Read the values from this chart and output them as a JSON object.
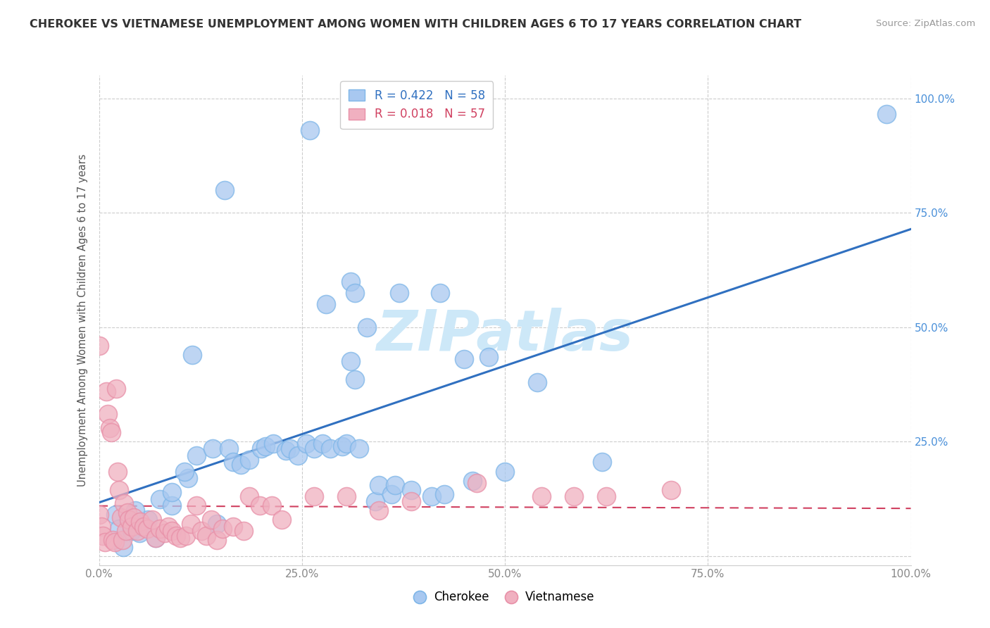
{
  "title": "CHEROKEE VS VIETNAMESE UNEMPLOYMENT AMONG WOMEN WITH CHILDREN AGES 6 TO 17 YEARS CORRELATION CHART",
  "source": "Source: ZipAtlas.com",
  "ylabel": "Unemployment Among Women with Children Ages 6 to 17 years",
  "xlim": [
    0,
    1.0
  ],
  "ylim": [
    -0.02,
    1.05
  ],
  "xticks": [
    0.0,
    0.25,
    0.5,
    0.75,
    1.0
  ],
  "yticks": [
    0.0,
    0.25,
    0.5,
    0.75,
    1.0
  ],
  "xticklabels": [
    "0.0%",
    "25.0%",
    "50.0%",
    "75.0%",
    "100.0%"
  ],
  "right_yticklabels": [
    "",
    "25.0%",
    "50.0%",
    "75.0%",
    "100.0%"
  ],
  "cherokee_color": "#a8c8f0",
  "vietnamese_color": "#f0b0c0",
  "cherokee_edge_color": "#7eb6e8",
  "vietnamese_edge_color": "#e890a8",
  "cherokee_line_color": "#3070c0",
  "vietnamese_line_color": "#d04060",
  "cherokee_R": 0.422,
  "cherokee_N": 58,
  "vietnamese_R": 0.018,
  "vietnamese_N": 57,
  "watermark": "ZIPatlas",
  "watermark_color": "#cde8f8",
  "cherokee_x": [
    0.26,
    0.97,
    0.155,
    0.31,
    0.315,
    0.37,
    0.28,
    0.33,
    0.115,
    0.31,
    0.42,
    0.315,
    0.48,
    0.54,
    0.45,
    0.02,
    0.025,
    0.04,
    0.05,
    0.06,
    0.045,
    0.075,
    0.03,
    0.07,
    0.09,
    0.09,
    0.11,
    0.105,
    0.12,
    0.14,
    0.145,
    0.16,
    0.165,
    0.175,
    0.185,
    0.2,
    0.205,
    0.215,
    0.23,
    0.235,
    0.245,
    0.255,
    0.265,
    0.275,
    0.285,
    0.3,
    0.305,
    0.32,
    0.34,
    0.345,
    0.36,
    0.365,
    0.385,
    0.41,
    0.425,
    0.46,
    0.5,
    0.62
  ],
  "cherokee_y": [
    0.93,
    0.965,
    0.8,
    0.6,
    0.575,
    0.575,
    0.55,
    0.5,
    0.44,
    0.425,
    0.575,
    0.385,
    0.435,
    0.38,
    0.43,
    0.09,
    0.06,
    0.055,
    0.05,
    0.08,
    0.1,
    0.125,
    0.02,
    0.04,
    0.11,
    0.14,
    0.17,
    0.185,
    0.22,
    0.235,
    0.07,
    0.235,
    0.205,
    0.2,
    0.21,
    0.235,
    0.24,
    0.245,
    0.23,
    0.235,
    0.22,
    0.245,
    0.235,
    0.245,
    0.235,
    0.24,
    0.245,
    0.235,
    0.12,
    0.155,
    0.135,
    0.155,
    0.145,
    0.13,
    0.135,
    0.165,
    0.185,
    0.205
  ],
  "vietnamese_x": [
    0.0,
    0.0,
    0.003,
    0.005,
    0.007,
    0.009,
    0.011,
    0.013,
    0.015,
    0.017,
    0.019,
    0.021,
    0.023,
    0.025,
    0.027,
    0.029,
    0.031,
    0.033,
    0.035,
    0.037,
    0.04,
    0.043,
    0.047,
    0.051,
    0.055,
    0.059,
    0.065,
    0.07,
    0.075,
    0.081,
    0.085,
    0.09,
    0.095,
    0.1,
    0.107,
    0.113,
    0.12,
    0.126,
    0.132,
    0.138,
    0.145,
    0.152,
    0.165,
    0.178,
    0.185,
    0.198,
    0.213,
    0.225,
    0.265,
    0.305,
    0.345,
    0.385,
    0.465,
    0.545,
    0.585,
    0.625,
    0.705
  ],
  "vietnamese_y": [
    0.46,
    0.09,
    0.065,
    0.045,
    0.03,
    0.36,
    0.31,
    0.28,
    0.27,
    0.035,
    0.03,
    0.365,
    0.185,
    0.145,
    0.085,
    0.035,
    0.115,
    0.055,
    0.095,
    0.08,
    0.065,
    0.085,
    0.055,
    0.075,
    0.065,
    0.06,
    0.08,
    0.04,
    0.06,
    0.05,
    0.065,
    0.055,
    0.045,
    0.04,
    0.045,
    0.07,
    0.11,
    0.055,
    0.045,
    0.08,
    0.035,
    0.06,
    0.065,
    0.055,
    0.13,
    0.11,
    0.11,
    0.08,
    0.13,
    0.13,
    0.1,
    0.12,
    0.16,
    0.13,
    0.13,
    0.13,
    0.145
  ]
}
